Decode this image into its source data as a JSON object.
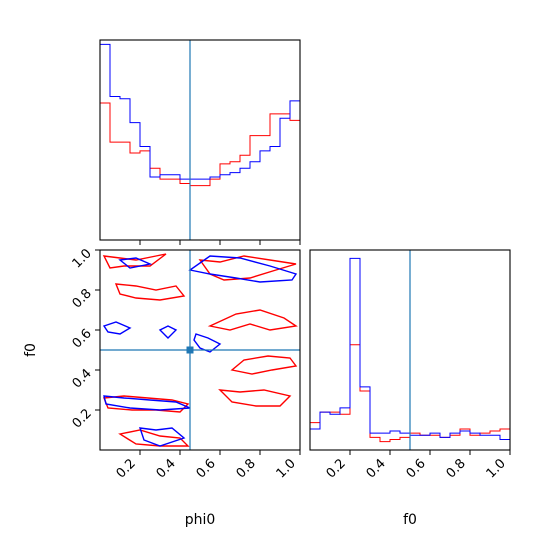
{
  "colors": {
    "series_a": "#ff0000",
    "series_b": "#0000ff",
    "truth": "#1f77b4",
    "axes": "#000000",
    "background": "#ffffff"
  },
  "chart_data": {
    "type": "corner",
    "parameters": [
      "phi0",
      "f0"
    ],
    "xlabels": [
      "phi0",
      "f0"
    ],
    "ylabel": "f0",
    "truths": {
      "phi0": 0.45,
      "f0": 0.5
    },
    "ranges": {
      "phi0": [
        0.0,
        1.0
      ],
      "f0": [
        0.0,
        1.0
      ]
    },
    "ticks": {
      "phi0": [
        "0.2",
        "0.4",
        "0.6",
        "0.8",
        "1.0"
      ],
      "f0": [
        "0.2",
        "0.4",
        "0.6",
        "0.8",
        "1.0"
      ]
    },
    "panels": {
      "phi0_marginal": {
        "type": "step-histogram",
        "bin_edges": [
          0.0,
          0.05,
          0.1,
          0.15,
          0.2,
          0.25,
          0.3,
          0.35,
          0.4,
          0.45,
          0.5,
          0.55,
          0.6,
          0.65,
          0.7,
          0.75,
          0.8,
          0.85,
          0.9,
          0.95,
          1.0
        ],
        "series": [
          {
            "color": "red",
            "values": [
              0.63,
              0.45,
              0.45,
              0.4,
              0.41,
              0.33,
              0.28,
              0.28,
              0.26,
              0.25,
              0.25,
              0.28,
              0.35,
              0.36,
              0.39,
              0.48,
              0.48,
              0.58,
              0.58,
              0.55
            ]
          },
          {
            "color": "blue",
            "values": [
              0.9,
              0.66,
              0.65,
              0.54,
              0.43,
              0.29,
              0.3,
              0.3,
              0.28,
              0.28,
              0.28,
              0.29,
              0.3,
              0.31,
              0.33,
              0.36,
              0.41,
              0.43,
              0.56,
              0.64
            ]
          }
        ],
        "ylim": [
          0.0,
          0.92
        ]
      },
      "f0_marginal": {
        "type": "step-histogram",
        "bin_edges": [
          0.0,
          0.05,
          0.1,
          0.15,
          0.2,
          0.25,
          0.3,
          0.35,
          0.4,
          0.45,
          0.5,
          0.55,
          0.6,
          0.65,
          0.7,
          0.75,
          0.8,
          0.85,
          0.9,
          0.95,
          1.0
        ],
        "series": [
          {
            "color": "red",
            "values": [
              0.13,
              0.18,
              0.18,
              0.17,
              0.5,
              0.28,
              0.06,
              0.04,
              0.05,
              0.06,
              0.08,
              0.07,
              0.07,
              0.06,
              0.07,
              0.1,
              0.07,
              0.08,
              0.09,
              0.1
            ]
          },
          {
            "color": "blue",
            "values": [
              0.1,
              0.18,
              0.17,
              0.2,
              0.91,
              0.3,
              0.08,
              0.08,
              0.09,
              0.08,
              0.07,
              0.07,
              0.08,
              0.06,
              0.08,
              0.09,
              0.08,
              0.07,
              0.07,
              0.05
            ]
          }
        ],
        "ylim": [
          0.0,
          0.95
        ]
      },
      "joint": {
        "type": "contour",
        "truth_point": [
          0.45,
          0.5
        ],
        "contours": [
          {
            "color": "red",
            "points": [
              [
                0.02,
                0.97
              ],
              [
                0.1,
                0.96
              ],
              [
                0.18,
                0.95
              ],
              [
                0.28,
                0.97
              ],
              [
                0.33,
                0.98
              ],
              [
                0.25,
                0.92
              ],
              [
                0.12,
                0.92
              ],
              [
                0.05,
                0.91
              ]
            ]
          },
          {
            "color": "red",
            "points": [
              [
                0.08,
                0.83
              ],
              [
                0.18,
                0.82
              ],
              [
                0.28,
                0.8
              ],
              [
                0.38,
                0.82
              ],
              [
                0.42,
                0.77
              ],
              [
                0.3,
                0.75
              ],
              [
                0.18,
                0.76
              ],
              [
                0.1,
                0.78
              ]
            ]
          },
          {
            "color": "red",
            "points": [
              [
                0.5,
                0.95
              ],
              [
                0.6,
                0.94
              ],
              [
                0.72,
                0.97
              ],
              [
                0.85,
                0.95
              ],
              [
                0.98,
                0.93
              ],
              [
                0.88,
                0.9
              ],
              [
                0.75,
                0.86
              ],
              [
                0.62,
                0.85
              ],
              [
                0.55,
                0.88
              ]
            ]
          },
          {
            "color": "red",
            "points": [
              [
                0.55,
                0.62
              ],
              [
                0.65,
                0.6
              ],
              [
                0.75,
                0.63
              ],
              [
                0.85,
                0.6
              ],
              [
                0.98,
                0.62
              ],
              [
                0.92,
                0.66
              ],
              [
                0.8,
                0.7
              ],
              [
                0.68,
                0.68
              ]
            ]
          },
          {
            "color": "red",
            "points": [
              [
                0.66,
                0.4
              ],
              [
                0.76,
                0.38
              ],
              [
                0.86,
                0.4
              ],
              [
                0.98,
                0.42
              ],
              [
                0.95,
                0.46
              ],
              [
                0.84,
                0.47
              ],
              [
                0.72,
                0.45
              ]
            ]
          },
          {
            "color": "red",
            "points": [
              [
                0.02,
                0.26
              ],
              [
                0.12,
                0.27
              ],
              [
                0.24,
                0.26
              ],
              [
                0.36,
                0.25
              ],
              [
                0.44,
                0.23
              ],
              [
                0.4,
                0.19
              ],
              [
                0.28,
                0.2
              ],
              [
                0.16,
                0.2
              ],
              [
                0.04,
                0.21
              ]
            ]
          },
          {
            "color": "red",
            "points": [
              [
                0.6,
                0.3
              ],
              [
                0.7,
                0.29
              ],
              [
                0.82,
                0.3
              ],
              [
                0.95,
                0.27
              ],
              [
                0.9,
                0.22
              ],
              [
                0.78,
                0.22
              ],
              [
                0.66,
                0.24
              ]
            ]
          },
          {
            "color": "red",
            "points": [
              [
                0.1,
                0.08
              ],
              [
                0.2,
                0.1
              ],
              [
                0.3,
                0.07
              ],
              [
                0.4,
                0.06
              ],
              [
                0.44,
                0.02
              ],
              [
                0.3,
                0.02
              ],
              [
                0.18,
                0.03
              ]
            ]
          },
          {
            "color": "blue",
            "points": [
              [
                0.1,
                0.95
              ],
              [
                0.18,
                0.96
              ],
              [
                0.25,
                0.93
              ],
              [
                0.15,
                0.91
              ]
            ]
          },
          {
            "color": "blue",
            "points": [
              [
                0.45,
                0.9
              ],
              [
                0.55,
                0.88
              ],
              [
                0.68,
                0.86
              ],
              [
                0.8,
                0.84
              ],
              [
                0.96,
                0.85
              ],
              [
                0.98,
                0.88
              ],
              [
                0.85,
                0.92
              ],
              [
                0.7,
                0.96
              ],
              [
                0.55,
                0.97
              ]
            ]
          },
          {
            "color": "blue",
            "points": [
              [
                0.02,
                0.62
              ],
              [
                0.08,
                0.64
              ],
              [
                0.15,
                0.61
              ],
              [
                0.1,
                0.58
              ],
              [
                0.04,
                0.59
              ]
            ]
          },
          {
            "color": "blue",
            "points": [
              [
                0.3,
                0.6
              ],
              [
                0.34,
                0.56
              ],
              [
                0.38,
                0.6
              ],
              [
                0.34,
                0.62
              ]
            ]
          },
          {
            "color": "blue",
            "points": [
              [
                0.48,
                0.58
              ],
              [
                0.54,
                0.56
              ],
              [
                0.6,
                0.53
              ],
              [
                0.55,
                0.49
              ],
              [
                0.5,
                0.51
              ],
              [
                0.47,
                0.55
              ]
            ]
          },
          {
            "color": "blue",
            "points": [
              [
                0.02,
                0.27
              ],
              [
                0.12,
                0.26
              ],
              [
                0.25,
                0.25
              ],
              [
                0.38,
                0.24
              ],
              [
                0.45,
                0.21
              ],
              [
                0.3,
                0.2
              ],
              [
                0.15,
                0.21
              ],
              [
                0.03,
                0.23
              ]
            ]
          },
          {
            "color": "blue",
            "points": [
              [
                0.2,
                0.11
              ],
              [
                0.28,
                0.1
              ],
              [
                0.36,
                0.11
              ],
              [
                0.42,
                0.06
              ],
              [
                0.3,
                0.02
              ],
              [
                0.22,
                0.05
              ]
            ]
          }
        ]
      }
    }
  }
}
